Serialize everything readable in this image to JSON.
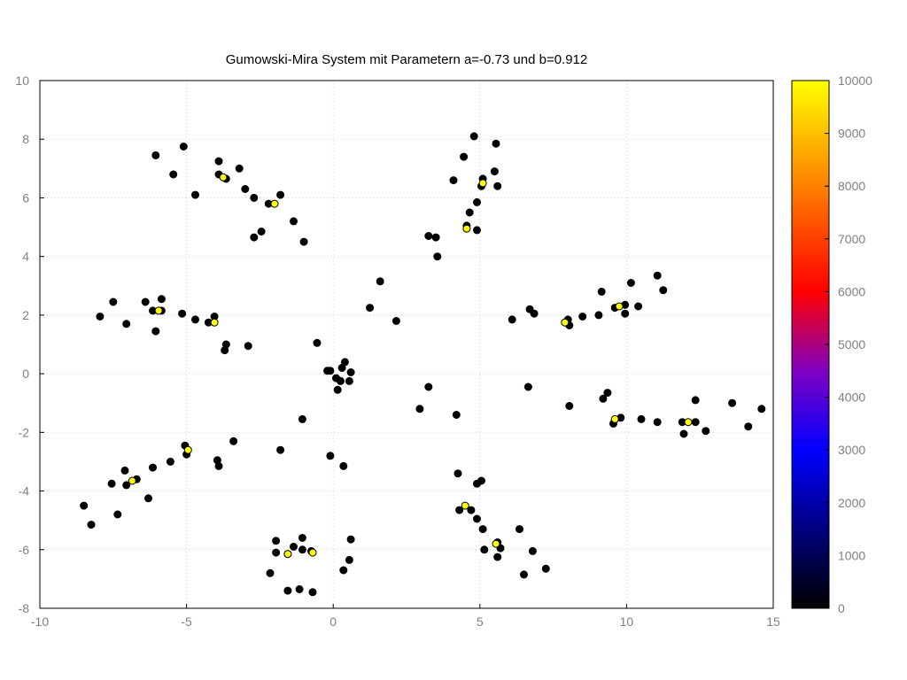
{
  "chart_data": {
    "type": "scatter",
    "title": "Gumowski-Mira System mit Parametern a=-0.73 und b=0.912",
    "xlabel": "",
    "ylabel": "",
    "xlim": [
      -10,
      15
    ],
    "ylim": [
      -8,
      10
    ],
    "xticks": [
      "-10",
      "-5",
      "0",
      "5",
      "10",
      "15"
    ],
    "yticks": [
      "-8",
      "-6",
      "-4",
      "-2",
      "0",
      "2",
      "4",
      "6",
      "8",
      "10"
    ],
    "grid": true,
    "colorbar": {
      "range": [
        0,
        10000
      ],
      "ticks": [
        "0",
        "1000",
        "2000",
        "3000",
        "4000",
        "5000",
        "6000",
        "7000",
        "8000",
        "9000",
        "10000"
      ],
      "colormap": [
        "#000000",
        "#000080",
        "#0000ff",
        "#8000c0",
        "#ff0000",
        "#ff8000",
        "#ffff00"
      ]
    },
    "series": [
      {
        "color": "#000000",
        "points": [
          [
            -6.05,
            7.45
          ],
          [
            -5.1,
            7.75
          ],
          [
            -5.45,
            6.8
          ],
          [
            -3.9,
            7.25
          ],
          [
            -3.2,
            7.0
          ],
          [
            -3.9,
            6.8
          ],
          [
            -3.65,
            6.65
          ],
          [
            -4.7,
            6.1
          ],
          [
            -3.0,
            6.3
          ],
          [
            -2.7,
            6.0
          ],
          [
            -2.2,
            5.8
          ],
          [
            -1.8,
            6.1
          ],
          [
            -1.35,
            5.2
          ],
          [
            -2.45,
            4.85
          ],
          [
            -2.7,
            4.65
          ],
          [
            -1.0,
            4.5
          ],
          [
            -7.5,
            2.45
          ],
          [
            -6.4,
            2.45
          ],
          [
            -5.85,
            2.55
          ],
          [
            -6.15,
            2.15
          ],
          [
            -5.85,
            2.15
          ],
          [
            -5.15,
            2.05
          ],
          [
            -7.95,
            1.95
          ],
          [
            -4.7,
            1.85
          ],
          [
            -4.25,
            1.75
          ],
          [
            -4.05,
            1.95
          ],
          [
            -7.05,
            1.7
          ],
          [
            -6.05,
            1.45
          ],
          [
            -3.65,
            1.0
          ],
          [
            -2.9,
            0.95
          ],
          [
            -3.7,
            0.8
          ],
          [
            1.6,
            3.15
          ],
          [
            1.25,
            2.25
          ],
          [
            2.15,
            1.8
          ],
          [
            -0.55,
            1.05
          ],
          [
            0.4,
            0.4
          ],
          [
            0.3,
            0.2
          ],
          [
            -0.2,
            0.1
          ],
          [
            -0.1,
            0.1
          ],
          [
            0.6,
            0.05
          ],
          [
            0.1,
            -0.15
          ],
          [
            0.25,
            -0.25
          ],
          [
            0.55,
            -0.25
          ],
          [
            0.15,
            -0.55
          ],
          [
            -1.05,
            -1.55
          ],
          [
            4.8,
            8.1
          ],
          [
            5.55,
            7.85
          ],
          [
            4.45,
            7.4
          ],
          [
            5.5,
            6.9
          ],
          [
            4.1,
            6.6
          ],
          [
            5.1,
            6.65
          ],
          [
            5.05,
            6.4
          ],
          [
            5.6,
            6.4
          ],
          [
            4.9,
            5.85
          ],
          [
            4.65,
            5.5
          ],
          [
            4.55,
            5.05
          ],
          [
            4.9,
            4.9
          ],
          [
            3.25,
            4.7
          ],
          [
            3.5,
            4.65
          ],
          [
            3.55,
            4.0
          ],
          [
            11.05,
            3.35
          ],
          [
            10.15,
            3.1
          ],
          [
            11.25,
            2.85
          ],
          [
            9.15,
            2.8
          ],
          [
            10.4,
            2.3
          ],
          [
            9.95,
            2.35
          ],
          [
            9.6,
            2.25
          ],
          [
            6.7,
            2.2
          ],
          [
            6.85,
            2.05
          ],
          [
            9.95,
            2.05
          ],
          [
            8.5,
            1.95
          ],
          [
            9.05,
            2.0
          ],
          [
            6.1,
            1.85
          ],
          [
            8.0,
            1.85
          ],
          [
            8.05,
            1.65
          ],
          [
            6.65,
            -0.45
          ],
          [
            3.25,
            -0.45
          ],
          [
            9.35,
            -0.65
          ],
          [
            9.2,
            -0.85
          ],
          [
            12.35,
            -0.9
          ],
          [
            13.6,
            -1.0
          ],
          [
            2.95,
            -1.2
          ],
          [
            8.05,
            -1.1
          ],
          [
            14.6,
            -1.2
          ],
          [
            4.2,
            -1.4
          ],
          [
            9.8,
            -1.5
          ],
          [
            10.5,
            -1.55
          ],
          [
            9.55,
            -1.7
          ],
          [
            11.05,
            -1.65
          ],
          [
            11.9,
            -1.65
          ],
          [
            12.35,
            -1.65
          ],
          [
            14.15,
            -1.8
          ],
          [
            12.7,
            -1.95
          ],
          [
            11.95,
            -2.05
          ],
          [
            -5.05,
            -2.45
          ],
          [
            -3.4,
            -2.3
          ],
          [
            -5.0,
            -2.75
          ],
          [
            -1.8,
            -2.6
          ],
          [
            -0.1,
            -2.8
          ],
          [
            -3.95,
            -2.95
          ],
          [
            -3.9,
            -3.15
          ],
          [
            -5.55,
            -3.0
          ],
          [
            -6.15,
            -3.2
          ],
          [
            0.35,
            -3.15
          ],
          [
            -7.1,
            -3.3
          ],
          [
            -6.7,
            -3.6
          ],
          [
            -7.55,
            -3.75
          ],
          [
            -7.05,
            -3.8
          ],
          [
            -6.3,
            -4.25
          ],
          [
            4.25,
            -3.4
          ],
          [
            5.05,
            -3.65
          ],
          [
            4.9,
            -3.75
          ],
          [
            4.3,
            -4.65
          ],
          [
            4.7,
            -4.65
          ],
          [
            4.9,
            -4.95
          ],
          [
            5.1,
            -5.3
          ],
          [
            6.35,
            -5.3
          ],
          [
            5.6,
            -5.75
          ],
          [
            5.7,
            -5.95
          ],
          [
            5.15,
            -6.0
          ],
          [
            5.6,
            -6.25
          ],
          [
            6.8,
            -6.05
          ],
          [
            7.25,
            -6.65
          ],
          [
            6.5,
            -6.85
          ],
          [
            -8.5,
            -4.5
          ],
          [
            -7.35,
            -4.8
          ],
          [
            -8.25,
            -5.15
          ],
          [
            -1.95,
            -5.7
          ],
          [
            -1.05,
            -5.6
          ],
          [
            -1.35,
            -5.9
          ],
          [
            -1.05,
            -6.0
          ],
          [
            -0.75,
            -6.05
          ],
          [
            -1.95,
            -6.1
          ],
          [
            -1.55,
            -6.15
          ],
          [
            0.6,
            -5.65
          ],
          [
            0.55,
            -6.35
          ],
          [
            0.35,
            -6.7
          ],
          [
            -2.15,
            -6.8
          ],
          [
            -1.55,
            -7.4
          ],
          [
            -1.15,
            -7.35
          ],
          [
            -0.7,
            -7.45
          ]
        ]
      },
      {
        "color": "#ffff00",
        "points": [
          [
            -3.75,
            6.7
          ],
          [
            -2.0,
            5.8
          ],
          [
            -5.95,
            2.15
          ],
          [
            -4.05,
            1.75
          ],
          [
            -4.95,
            -2.6
          ],
          [
            -6.85,
            -3.65
          ],
          [
            -1.55,
            -6.15
          ],
          [
            -0.7,
            -6.1
          ],
          [
            4.5,
            -4.5
          ],
          [
            5.55,
            -5.8
          ],
          [
            7.9,
            1.75
          ],
          [
            9.75,
            2.3
          ],
          [
            9.6,
            -1.55
          ],
          [
            12.1,
            -1.65
          ],
          [
            5.1,
            6.5
          ],
          [
            4.55,
            4.95
          ]
        ]
      }
    ]
  }
}
